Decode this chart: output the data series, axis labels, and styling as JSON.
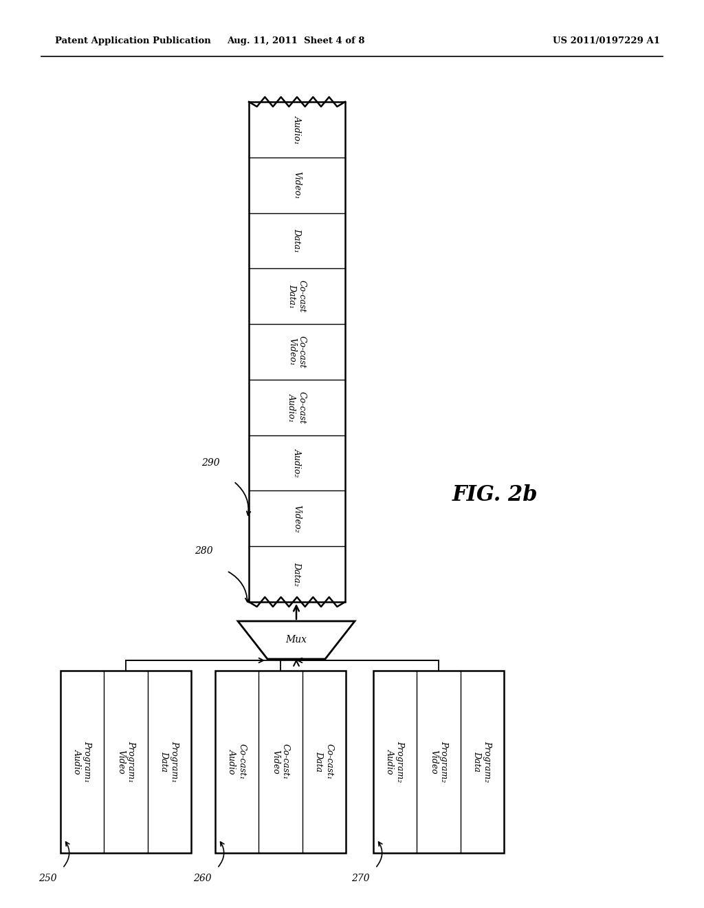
{
  "title_left": "Patent Application Publication",
  "title_mid": "Aug. 11, 2011  Sheet 4 of 8",
  "title_right": "US 2011/0197229 A1",
  "fig_label": "FIG. 2b",
  "stream_segments": [
    "Audio₁",
    "Video₁",
    "Data₁",
    "Co-cast\nData₁",
    "Co-cast\nVideo₁",
    "Co-cast\nAudio₁",
    "Audio₂",
    "Video₂",
    "Data₂"
  ],
  "mux_label": "Mux",
  "label_280": "280",
  "label_290": "290",
  "label_250": "250",
  "label_260": "260",
  "label_270": "270",
  "box1_segments": [
    "Program₁\nAudio",
    "Program₁\nVideo",
    "Program₁\nData"
  ],
  "box2_segments": [
    "Co-cast₁\nAudio",
    "Co-cast₁\nVideo",
    "Co-cast₁\nData"
  ],
  "box3_segments": [
    "Program₂\nAudio",
    "Program₂\nVideo",
    "Program₂\nData"
  ]
}
